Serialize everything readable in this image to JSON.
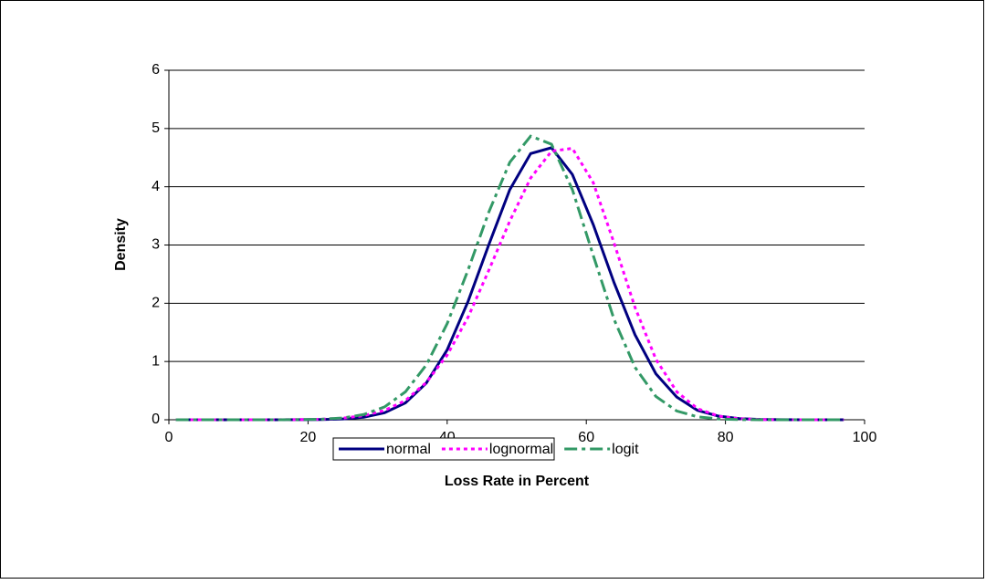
{
  "chart_data": {
    "type": "line",
    "xlabel": "Loss Rate in Percent",
    "ylabel": "Density",
    "x": [
      1,
      4,
      7,
      10,
      13,
      16,
      19,
      22,
      25,
      28,
      31,
      34,
      37,
      40,
      43,
      46,
      49,
      52,
      55,
      58,
      61,
      64,
      67,
      70,
      73,
      76,
      79,
      82,
      85,
      88,
      91,
      94,
      97
    ],
    "series": [
      {
        "name": "normal",
        "color": "#000080",
        "dash": "solid",
        "values": [
          0,
          0,
          0,
          0,
          0,
          0,
          0.001,
          0.004,
          0.014,
          0.043,
          0.12,
          0.29,
          0.63,
          1.2,
          2.03,
          3.01,
          3.95,
          4.57,
          4.67,
          4.21,
          3.35,
          2.35,
          1.46,
          0.79,
          0.39,
          0.16,
          0.062,
          0.02,
          0.006,
          0.001,
          0,
          0,
          0
        ]
      },
      {
        "name": "lognormal",
        "color": "#ff00ff",
        "dash": "dot",
        "values": [
          0,
          0,
          0,
          0,
          0,
          0.001,
          0.003,
          0.01,
          0.028,
          0.07,
          0.16,
          0.33,
          0.64,
          1.11,
          1.76,
          2.57,
          3.41,
          4.15,
          4.61,
          4.66,
          4.07,
          3.03,
          1.93,
          1.04,
          0.48,
          0.19,
          0.063,
          0.018,
          0.004,
          0,
          0,
          0,
          0
        ]
      },
      {
        "name": "logit",
        "color": "#339966",
        "dash": "dashdot",
        "values": [
          0,
          0,
          0,
          0,
          0,
          0,
          0.003,
          0.01,
          0.03,
          0.09,
          0.22,
          0.48,
          0.94,
          1.65,
          2.57,
          3.57,
          4.42,
          4.87,
          4.73,
          3.95,
          2.82,
          1.72,
          0.9,
          0.4,
          0.15,
          0.05,
          0.014,
          0.003,
          0,
          0,
          0,
          0,
          0
        ]
      }
    ],
    "xlim": [
      0,
      100
    ],
    "xticks": [
      0,
      20,
      40,
      60,
      80,
      100
    ],
    "ylim": [
      0,
      6
    ],
    "yticks": [
      0,
      1,
      2,
      3,
      4,
      5,
      6
    ],
    "grid": true,
    "legend": "bottom"
  }
}
